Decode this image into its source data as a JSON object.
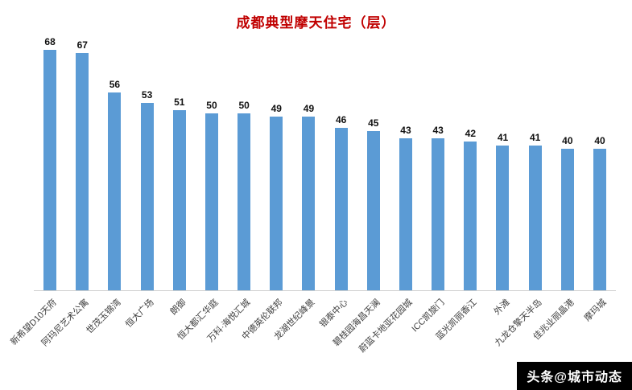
{
  "title": "成都典型摩天住宅（层）",
  "watermark": "头条@城市动态",
  "chart_data": {
    "type": "bar",
    "title": "成都典型摩天住宅（层）",
    "categories": [
      "新希望D10天府",
      "阿玛尼艺术公寓",
      "世茂玉锦湾",
      "恒大广场",
      "朗御",
      "恒大都汇华庭",
      "万科·海悦汇城",
      "中德英伦联邦",
      "龙湖世纪峰景",
      "银泰中心",
      "碧桂园海昌天澜",
      "蔚蓝卡地亚花园城",
      "ICC凯旋门",
      "蓝光凯丽香江",
      "外滩",
      "九龙仓擎天半岛",
      "佳兆业丽晶港",
      "摩玛城"
    ],
    "values": [
      68,
      67,
      56,
      53,
      51,
      50,
      50,
      49,
      49,
      46,
      45,
      43,
      43,
      42,
      41,
      41,
      40,
      40
    ],
    "xlabel": "",
    "ylabel": "",
    "ylim": [
      0,
      70
    ],
    "grid": false,
    "legend": "none",
    "bar_color": "#5b9bd5",
    "title_color": "#c00000",
    "value_label_color": "#111111",
    "category_label_color": "#3f3f3f"
  }
}
